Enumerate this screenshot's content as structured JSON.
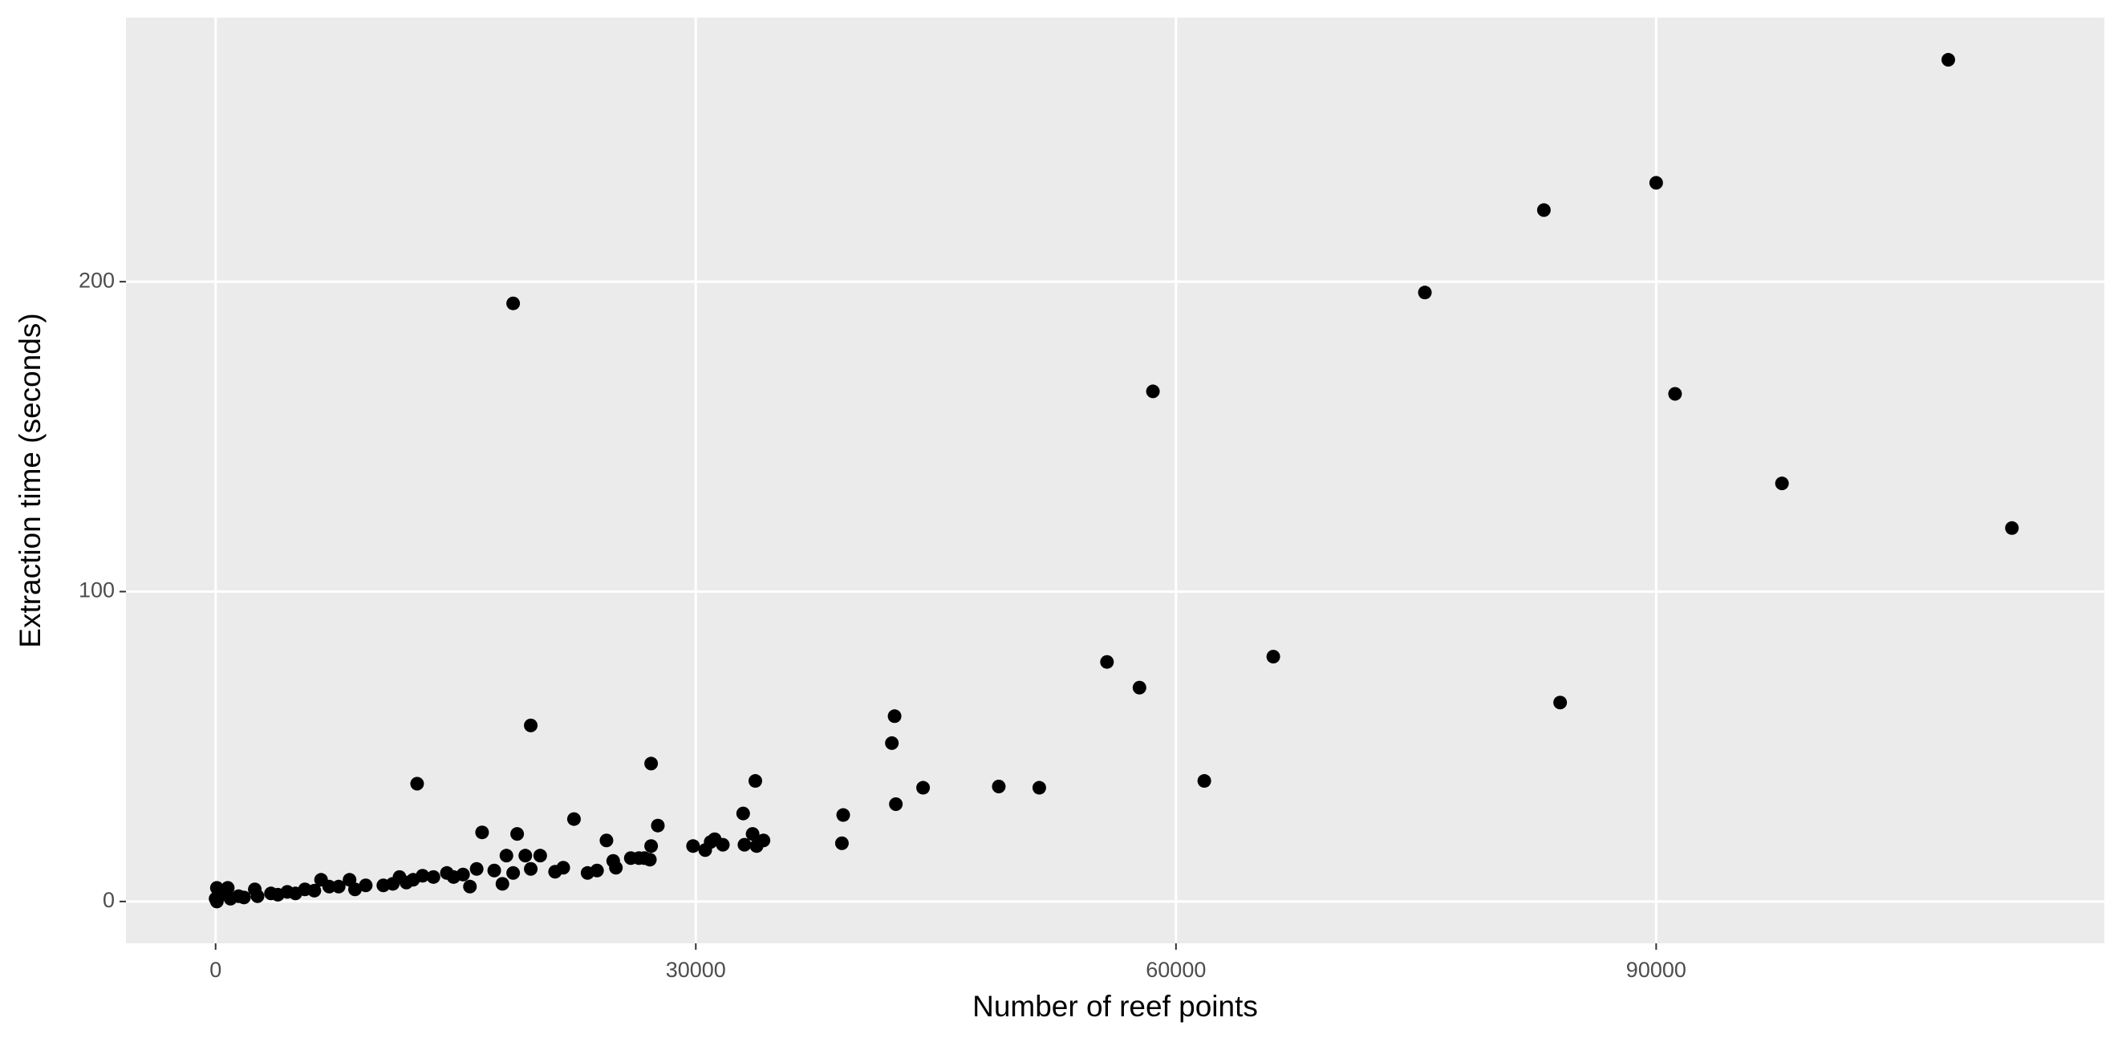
{
  "chart_data": {
    "type": "scatter",
    "xlabel": "Number of reef points",
    "ylabel": "Extraction time (seconds)",
    "color": "#000000",
    "grid": true,
    "xlim": [
      -5600,
      118000
    ],
    "xticks": [
      0,
      30000,
      60000,
      90000
    ],
    "ylim": [
      -13.5,
      285.2
    ],
    "yticks": [
      0,
      100,
      200
    ],
    "x": [
      108250,
      90000,
      82985,
      75550,
      18590,
      58560,
      91180,
      97860,
      112225,
      55690,
      66080,
      57720,
      84000,
      19690,
      42420,
      42250,
      61770,
      44200,
      48930,
      51460,
      42500,
      39210,
      39130,
      33720,
      32960,
      33550,
      34230,
      33040,
      33800,
      29830,
      30590,
      30930,
      31180,
      31690,
      27210,
      27630,
      27210,
      27130,
      26790,
      26450,
      25940,
      25010,
      24420,
      24840,
      23830,
      23240,
      22390,
      12590,
      16650,
      18840,
      18170,
      19350,
      20280,
      19690,
      21720,
      21210,
      16310,
      15460,
      15890,
      17920,
      17410,
      18590,
      14450,
      13610,
      12930,
      11490,
      11920,
      10480,
      9380,
      8370,
      7690,
      6590,
      7100,
      5580,
      4480,
      3460,
      2450,
      1440,
      760,
      80,
      340,
      0,
      930,
      1770,
      2620,
      3890,
      4990,
      6170,
      8710,
      11070,
      12340,
      14870,
      80
    ],
    "values": [
      271.6,
      231.9,
      223.1,
      196.5,
      193,
      164.6,
      163.8,
      134.9,
      120.5,
      77.3,
      79.0,
      69,
      64.2,
      56.8,
      59.8,
      51.1,
      38.9,
      36.7,
      37.1,
      36.7,
      31.4,
      27.9,
      18.8,
      38.9,
      28.4,
      21.8,
      19.7,
      18.3,
      17.9,
      17.9,
      16.6,
      19.2,
      20.1,
      18.3,
      44.5,
      24.5,
      17.9,
      13.5,
      14,
      14,
      14,
      10.9,
      19.7,
      13.1,
      10,
      9.2,
      26.6,
      38,
      22.3,
      21.8,
      14.8,
      14.8,
      14.8,
      10.5,
      10.9,
      9.6,
      10.5,
      8.7,
      4.8,
      5.7,
      10,
      9.2,
      9.2,
      7.9,
      8.3,
      7.9,
      6.1,
      5.2,
      5.2,
      7,
      4.8,
      7,
      4.8,
      3.9,
      3.1,
      2.6,
      3.9,
      1.7,
      4.4,
      4.4,
      2.2,
      0.9,
      0.9,
      1.3,
      1.7,
      2.2,
      2.6,
      3.5,
      3.9,
      5.7,
      7,
      7.9,
      0
    ]
  }
}
